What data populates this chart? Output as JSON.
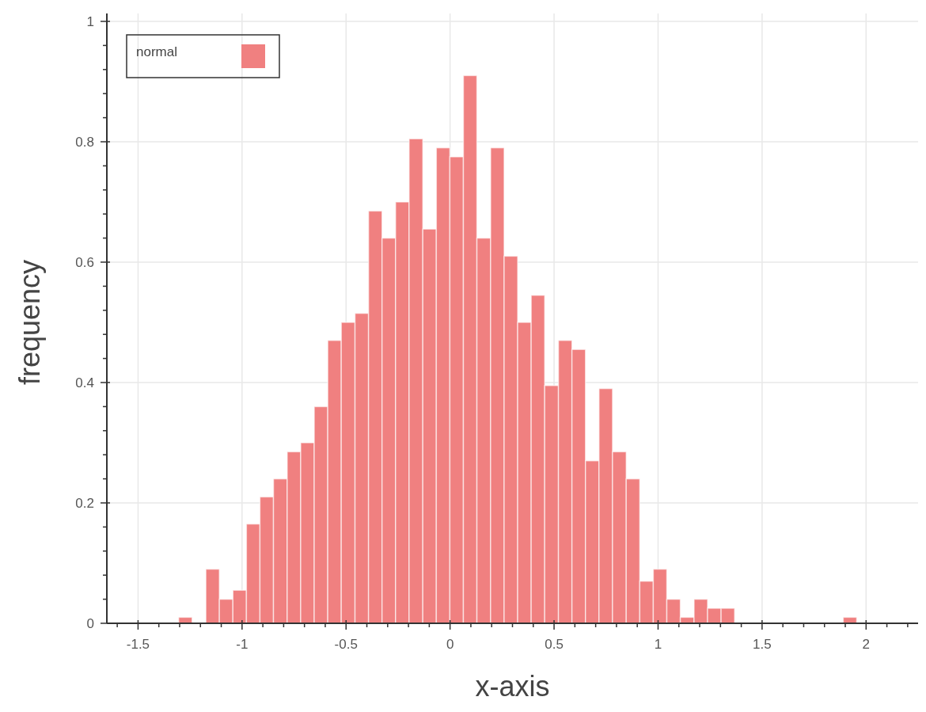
{
  "chart_data": {
    "type": "histogram",
    "xlabel": "x-axis",
    "ylabel": "frequency",
    "bins": [
      -1.305,
      -1.24,
      -1.174,
      -1.109,
      -1.044,
      -0.979,
      -0.914,
      -0.849,
      -0.783,
      -0.718,
      -0.653,
      -0.588,
      -0.523,
      -0.457,
      -0.392,
      -0.327,
      -0.262,
      -0.197,
      -0.131,
      -0.066,
      -0.001,
      0.064,
      0.129,
      0.195,
      0.26,
      0.325,
      0.39,
      0.455,
      0.521,
      0.586,
      0.651,
      0.716,
      0.781,
      0.847,
      0.912,
      0.977,
      1.042,
      1.107,
      1.173,
      1.238,
      1.303,
      1.368,
      1.433,
      1.499,
      1.564,
      1.629,
      1.694,
      1.759,
      1.825,
      1.89,
      1.955
    ],
    "series": [
      {
        "name": "normal",
        "color": "#f08080",
        "values": [
          0.01,
          0,
          0.09,
          0.04,
          0.055,
          0.165,
          0.21,
          0.24,
          0.285,
          0.3,
          0.36,
          0.47,
          0.5,
          0.515,
          0.685,
          0.64,
          0.7,
          0.805,
          0.655,
          0.79,
          0.775,
          0.91,
          0.64,
          0.79,
          0.61,
          0.5,
          0.545,
          0.395,
          0.47,
          0.455,
          0.27,
          0.39,
          0.285,
          0.24,
          0.07,
          0.09,
          0.04,
          0.01,
          0.04,
          0.025,
          0.025,
          0,
          0,
          0,
          0,
          0,
          0,
          0,
          0,
          0.01
        ]
      }
    ],
    "xlim": [
      -1.65,
      2.25
    ],
    "xticks": [
      {
        "value": -1.6,
        "label": null
      },
      -1.5,
      {
        "value": -1.4,
        "label": null
      },
      {
        "value": -1.3,
        "label": null
      },
      {
        "value": -1.2,
        "label": null
      },
      {
        "value": -1.1,
        "label": null
      },
      -1,
      {
        "value": -0.9,
        "label": null
      },
      {
        "value": -0.8,
        "label": null
      },
      {
        "value": -0.7,
        "label": null
      },
      {
        "value": -0.6,
        "label": null
      },
      -0.5,
      {
        "value": -0.4,
        "label": null
      },
      {
        "value": -0.3,
        "label": null
      },
      {
        "value": -0.2,
        "label": null
      },
      {
        "value": -0.1,
        "label": null
      },
      0,
      {
        "value": 0.1,
        "label": null
      },
      {
        "value": 0.2,
        "label": null
      },
      {
        "value": 0.3,
        "label": null
      },
      {
        "value": 0.4,
        "label": null
      },
      0.5,
      {
        "value": 0.6,
        "label": null
      },
      {
        "value": 0.7,
        "label": null
      },
      {
        "value": 0.8,
        "label": null
      },
      {
        "value": 0.9,
        "label": null
      },
      1,
      {
        "value": 1.1,
        "label": null
      },
      {
        "value": 1.2,
        "label": null
      },
      {
        "value": 1.3,
        "label": null
      },
      {
        "value": 1.4,
        "label": null
      },
      1.5,
      {
        "value": 1.6,
        "label": null
      },
      {
        "value": 1.7,
        "label": null
      },
      {
        "value": 1.8,
        "label": null
      },
      {
        "value": 1.9,
        "label": null
      },
      2,
      {
        "value": 2.1,
        "label": null
      },
      {
        "value": 2.2,
        "label": null
      }
    ],
    "ylim": [
      0,
      1
    ],
    "yticks": [
      0,
      {
        "value": 0.04,
        "label": null
      },
      {
        "value": 0.08,
        "label": null
      },
      {
        "value": 0.12,
        "label": null
      },
      {
        "value": 0.16,
        "label": null
      },
      0.2,
      {
        "value": 0.24,
        "label": null
      },
      {
        "value": 0.28,
        "label": null
      },
      {
        "value": 0.32,
        "label": null
      },
      {
        "value": 0.36,
        "label": null
      },
      0.4,
      {
        "value": 0.44,
        "label": null
      },
      {
        "value": 0.48,
        "label": null
      },
      {
        "value": 0.52,
        "label": null
      },
      {
        "value": 0.56,
        "label": null
      },
      0.6,
      {
        "value": 0.64,
        "label": null
      },
      {
        "value": 0.68,
        "label": null
      },
      {
        "value": 0.72,
        "label": null
      },
      {
        "value": 0.76,
        "label": null
      },
      0.8,
      {
        "value": 0.84,
        "label": null
      },
      {
        "value": 0.88,
        "label": null
      },
      {
        "value": 0.92,
        "label": null
      },
      {
        "value": 0.96,
        "label": null
      },
      1
    ],
    "grid": true,
    "legend": "top left"
  }
}
